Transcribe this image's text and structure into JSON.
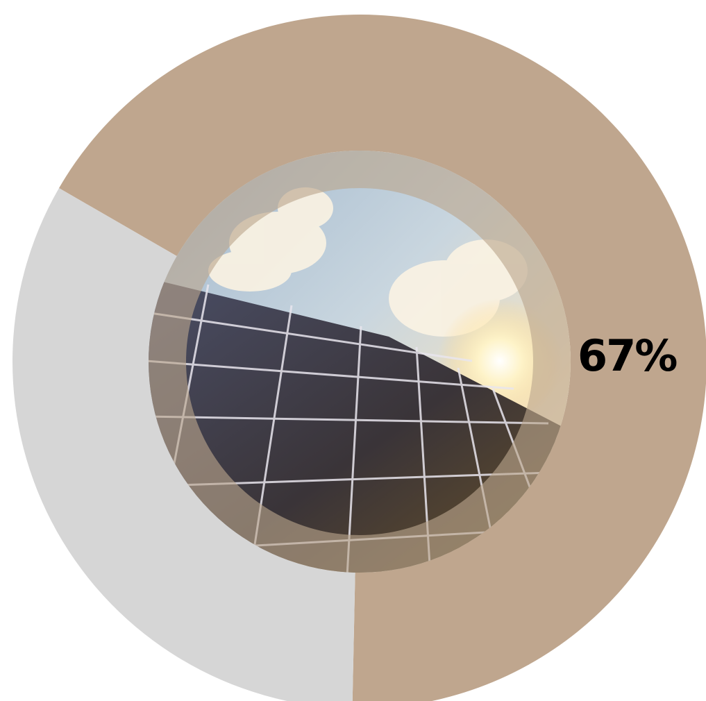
{
  "chart_data": {
    "type": "pie",
    "style": "donut",
    "slices": [
      {
        "value": 67,
        "color": "#bfa68e"
      },
      {
        "value": 33,
        "color": "#d6d6d6"
      }
    ],
    "data_labels": [
      "67%"
    ],
    "center_image": "solar-panels-under-sun-photo",
    "ring_overlay_color": "#a58a6a"
  }
}
